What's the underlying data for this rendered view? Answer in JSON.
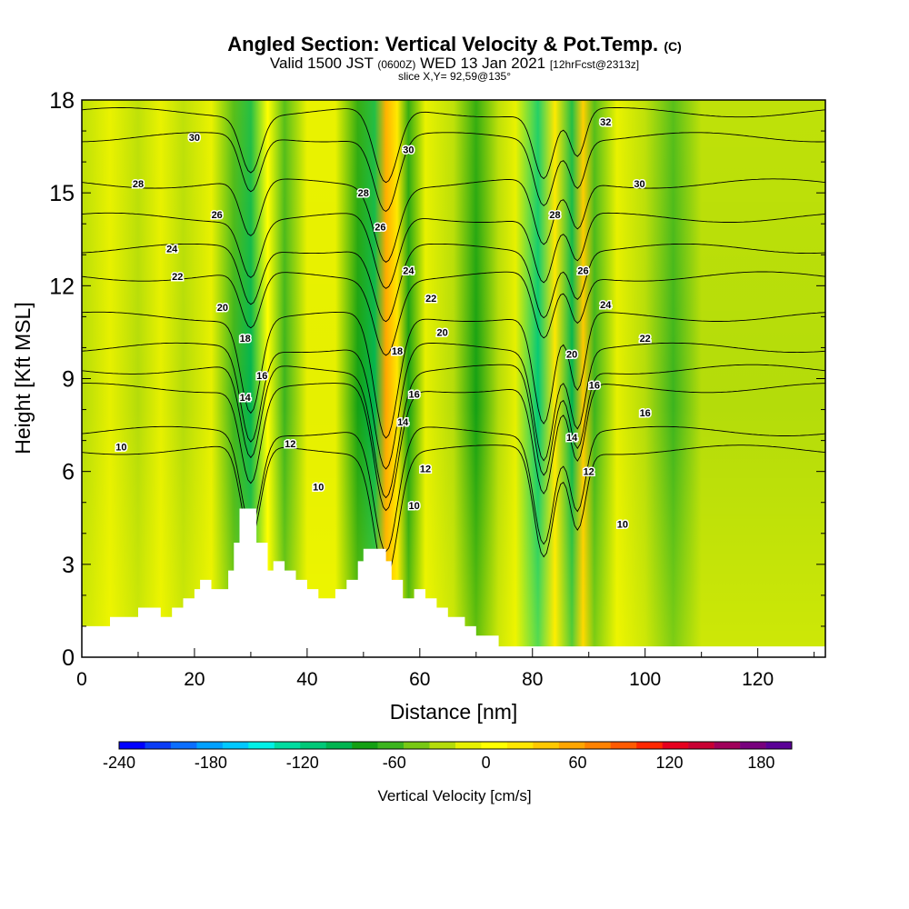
{
  "header": {
    "title": "Angled Section: Vertical Velocity & Pot.Temp.",
    "title_mark": "(C)",
    "valid_prefix": "Valid 1500 JST",
    "valid_utc": "(0600Z)",
    "valid_date": "WED 13 Jan 2021",
    "valid_fcst": "[12hrFcst@2313z]",
    "slice": "slice X,Y= 92,59@135°"
  },
  "chart_data": {
    "type": "heatmap",
    "xlabel": "Distance [nm]",
    "ylabel": "Height [Kft MSL]",
    "xlim": [
      0,
      132
    ],
    "ylim": [
      0,
      18
    ],
    "xticks": [
      0,
      20,
      40,
      60,
      80,
      100,
      120
    ],
    "yticks": [
      0,
      3,
      6,
      9,
      12,
      15,
      18
    ],
    "colorbar": {
      "label": "Vertical Velocity [cm/s]",
      "range": [
        -240,
        200
      ],
      "step": 20,
      "tick_values": [
        -240,
        -180,
        -120,
        -60,
        0,
        60,
        120,
        180
      ],
      "tick_labels": [
        "-240",
        "-180",
        "-120",
        "-60",
        "0",
        "60",
        "120",
        "180"
      ],
      "colors": [
        "#0000ff",
        "#0a3cf5",
        "#0a6eff",
        "#00a0ff",
        "#00c8ff",
        "#00f0e6",
        "#00dca0",
        "#00c878",
        "#00b450",
        "#14a014",
        "#3cb41e",
        "#78c814",
        "#b4dc0a",
        "#e6f000",
        "#ffff00",
        "#ffe600",
        "#ffc800",
        "#ffa500",
        "#ff8200",
        "#ff5a00",
        "#ff2800",
        "#e6001e",
        "#c80032",
        "#a0005a",
        "#78007d",
        "#5a0096"
      ]
    },
    "velocity_bands": [
      {
        "x": 0,
        "value": 10
      },
      {
        "x": 5,
        "value": 25
      },
      {
        "x": 10,
        "value": 5
      },
      {
        "x": 14,
        "value": 30
      },
      {
        "x": 18,
        "value": 15
      },
      {
        "x": 23,
        "value": 35
      },
      {
        "x": 27,
        "value": -35
      },
      {
        "x": 30,
        "value": -70
      },
      {
        "x": 33,
        "value": 45
      },
      {
        "x": 36,
        "value": -40
      },
      {
        "x": 40,
        "value": 20
      },
      {
        "x": 45,
        "value": 25
      },
      {
        "x": 49,
        "value": -55
      },
      {
        "x": 52,
        "value": -75
      },
      {
        "x": 54,
        "value": 110
      },
      {
        "x": 56,
        "value": 60
      },
      {
        "x": 58,
        "value": -50
      },
      {
        "x": 61,
        "value": 30
      },
      {
        "x": 66,
        "value": 15
      },
      {
        "x": 70,
        "value": -60
      },
      {
        "x": 74,
        "value": 10
      },
      {
        "x": 77,
        "value": 30
      },
      {
        "x": 81,
        "value": -90
      },
      {
        "x": 84,
        "value": 70
      },
      {
        "x": 87,
        "value": -80
      },
      {
        "x": 89,
        "value": 80
      },
      {
        "x": 91,
        "value": -30
      },
      {
        "x": 95,
        "value": 20
      },
      {
        "x": 100,
        "value": 10
      },
      {
        "x": 105,
        "value": -25
      },
      {
        "x": 110,
        "value": 10
      },
      {
        "x": 116,
        "value": 5
      },
      {
        "x": 121,
        "value": 15
      },
      {
        "x": 126,
        "value": 0
      },
      {
        "x": 132,
        "value": 10
      }
    ],
    "terrain": [
      [
        0,
        1.0
      ],
      [
        5,
        1.0
      ],
      [
        5,
        1.3
      ],
      [
        10,
        1.3
      ],
      [
        10,
        1.6
      ],
      [
        14,
        1.6
      ],
      [
        14,
        1.3
      ],
      [
        16,
        1.3
      ],
      [
        16,
        1.6
      ],
      [
        18,
        1.6
      ],
      [
        18,
        1.9
      ],
      [
        20,
        1.9
      ],
      [
        20,
        2.2
      ],
      [
        21,
        2.2
      ],
      [
        21,
        2.5
      ],
      [
        23,
        2.5
      ],
      [
        23,
        2.2
      ],
      [
        26,
        2.2
      ],
      [
        26,
        2.8
      ],
      [
        27,
        2.8
      ],
      [
        27,
        3.7
      ],
      [
        28,
        3.7
      ],
      [
        28,
        4.8
      ],
      [
        31,
        4.8
      ],
      [
        31,
        3.7
      ],
      [
        33,
        3.7
      ],
      [
        33,
        2.8
      ],
      [
        34,
        2.8
      ],
      [
        34,
        3.1
      ],
      [
        36,
        3.1
      ],
      [
        36,
        2.8
      ],
      [
        38,
        2.8
      ],
      [
        38,
        2.5
      ],
      [
        40,
        2.5
      ],
      [
        40,
        2.2
      ],
      [
        42,
        2.2
      ],
      [
        42,
        1.9
      ],
      [
        45,
        1.9
      ],
      [
        45,
        2.2
      ],
      [
        47,
        2.2
      ],
      [
        47,
        2.5
      ],
      [
        49,
        2.5
      ],
      [
        49,
        3.1
      ],
      [
        50,
        3.1
      ],
      [
        50,
        3.5
      ],
      [
        54,
        3.5
      ],
      [
        54,
        3.1
      ],
      [
        55,
        3.1
      ],
      [
        55,
        2.5
      ],
      [
        57,
        2.5
      ],
      [
        57,
        1.9
      ],
      [
        59,
        1.9
      ],
      [
        59,
        2.2
      ],
      [
        61,
        2.2
      ],
      [
        61,
        1.9
      ],
      [
        63,
        1.9
      ],
      [
        63,
        1.6
      ],
      [
        65,
        1.6
      ],
      [
        65,
        1.3
      ],
      [
        68,
        1.3
      ],
      [
        68,
        1.0
      ],
      [
        70,
        1.0
      ],
      [
        70,
        0.7
      ],
      [
        74,
        0.7
      ],
      [
        74,
        0.35
      ],
      [
        132,
        0.35
      ],
      [
        132,
        0
      ],
      [
        0,
        0
      ]
    ],
    "contours": [
      {
        "level": 10,
        "base": 6.7,
        "label": "10"
      },
      {
        "level": 12,
        "base": 7.3,
        "label": "12"
      },
      {
        "level": 14,
        "base": 8.7,
        "label": "14"
      },
      {
        "level": 16,
        "base": 9.3,
        "label": "16"
      },
      {
        "level": 18,
        "base": 10.0,
        "label": "18"
      },
      {
        "level": 20,
        "base": 11.0,
        "label": "20"
      },
      {
        "level": 22,
        "base": 12.3,
        "label": "22"
      },
      {
        "level": 24,
        "base": 13.2,
        "label": "24"
      },
      {
        "level": 26,
        "base": 14.2,
        "label": "26"
      },
      {
        "level": 28,
        "base": 15.3,
        "label": "28"
      },
      {
        "level": 30,
        "base": 16.8,
        "label": "30"
      },
      {
        "level": 32,
        "base": 17.6,
        "label": "32"
      }
    ],
    "contour_labels": [
      {
        "text": "10",
        "x": 7,
        "y": 6.8
      },
      {
        "text": "10",
        "x": 42,
        "y": 5.5
      },
      {
        "text": "10",
        "x": 59,
        "y": 4.9
      },
      {
        "text": "10",
        "x": 96,
        "y": 4.3
      },
      {
        "text": "12",
        "x": 37,
        "y": 6.9
      },
      {
        "text": "12",
        "x": 61,
        "y": 6.1
      },
      {
        "text": "12",
        "x": 90,
        "y": 6.0
      },
      {
        "text": "14",
        "x": 29,
        "y": 8.4
      },
      {
        "text": "14",
        "x": 57,
        "y": 7.6
      },
      {
        "text": "14",
        "x": 87,
        "y": 7.1
      },
      {
        "text": "16",
        "x": 32,
        "y": 9.1
      },
      {
        "text": "16",
        "x": 59,
        "y": 8.5
      },
      {
        "text": "16",
        "x": 91,
        "y": 8.8
      },
      {
        "text": "16",
        "x": 100,
        "y": 7.9
      },
      {
        "text": "18",
        "x": 29,
        "y": 10.3
      },
      {
        "text": "18",
        "x": 56,
        "y": 9.9
      },
      {
        "text": "20",
        "x": 25,
        "y": 11.3
      },
      {
        "text": "20",
        "x": 64,
        "y": 10.5
      },
      {
        "text": "20",
        "x": 87,
        "y": 9.8
      },
      {
        "text": "22",
        "x": 17,
        "y": 12.3
      },
      {
        "text": "22",
        "x": 62,
        "y": 11.6
      },
      {
        "text": "22",
        "x": 100,
        "y": 10.3
      },
      {
        "text": "24",
        "x": 16,
        "y": 13.2
      },
      {
        "text": "24",
        "x": 58,
        "y": 12.5
      },
      {
        "text": "24",
        "x": 93,
        "y": 11.4
      },
      {
        "text": "26",
        "x": 24,
        "y": 14.3
      },
      {
        "text": "26",
        "x": 53,
        "y": 13.9
      },
      {
        "text": "26",
        "x": 89,
        "y": 12.5
      },
      {
        "text": "28",
        "x": 10,
        "y": 15.3
      },
      {
        "text": "28",
        "x": 50,
        "y": 15.0
      },
      {
        "text": "28",
        "x": 84,
        "y": 14.3
      },
      {
        "text": "30",
        "x": 20,
        "y": 16.8
      },
      {
        "text": "30",
        "x": 58,
        "y": 16.4
      },
      {
        "text": "30",
        "x": 99,
        "y": 15.3
      },
      {
        "text": "32",
        "x": 93,
        "y": 17.3
      }
    ]
  }
}
